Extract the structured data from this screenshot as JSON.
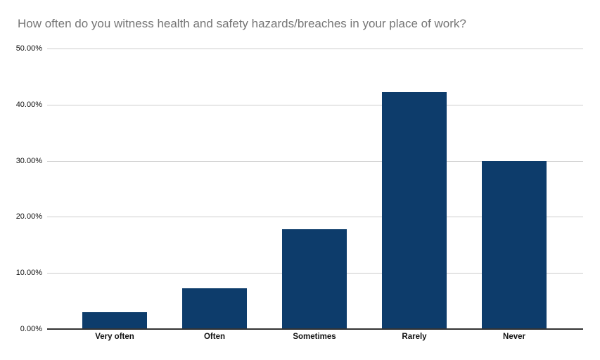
{
  "page": {
    "background": "#ffffff"
  },
  "chart_data": {
    "type": "bar",
    "title": "How often do you witness health and safety hazards/breaches in your place of work?",
    "categories": [
      "Very often",
      "Often",
      "Sometimes",
      "Rarely",
      "Never"
    ],
    "values": [
      3.0,
      7.3,
      17.8,
      42.2,
      29.9
    ],
    "value_unit": "%",
    "xlabel": "",
    "ylabel": "",
    "ylim": [
      0,
      50
    ],
    "yticks": [
      {
        "label": "50.00%",
        "value": 50
      },
      {
        "label": "40.00%",
        "value": 40
      },
      {
        "label": "30.00%",
        "value": 30
      },
      {
        "label": "20.00%",
        "value": 20
      },
      {
        "label": "10.00%",
        "value": 10
      },
      {
        "label": "0.00%",
        "value": 0
      }
    ],
    "grid": true,
    "legend": false,
    "colors": {
      "bar": "#0d3c6b",
      "title_text": "#757575",
      "gridline": "#cccccc",
      "axis_line": "#333333",
      "tick_text": "#111111"
    }
  }
}
